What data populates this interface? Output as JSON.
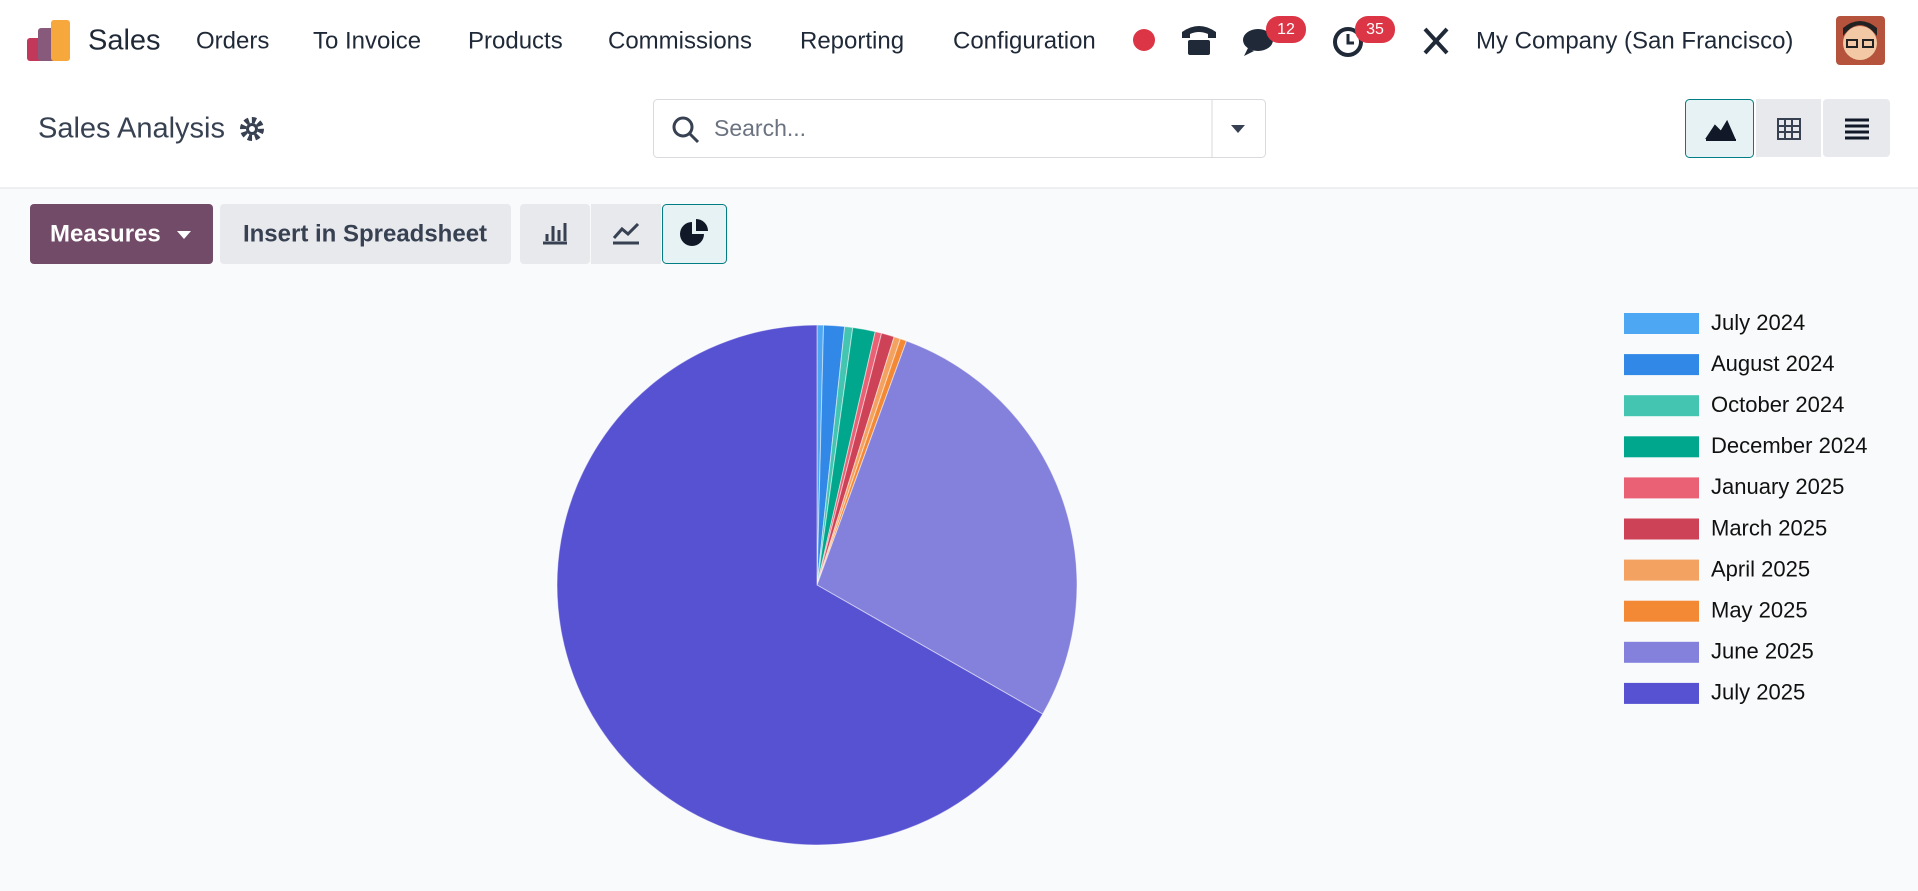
{
  "page": {
    "app": "Sales",
    "menu": [
      "Orders",
      "To Invoice",
      "Products",
      "Commissions",
      "Reporting",
      "Configuration"
    ],
    "messages_badge": "12",
    "activities_badge": "35",
    "company": "My Company (San Francisco)",
    "breadcrumb": "Sales Analysis",
    "search_placeholder": "Search...",
    "measures": "Measures",
    "insert": "Insert in Spreadsheet"
  },
  "chart_data": {
    "type": "pie",
    "categories": [
      "July 2024",
      "August 2024",
      "October 2024",
      "December 2024",
      "January 2025",
      "March 2025",
      "April 2025",
      "May 2025",
      "June 2025",
      "July 2025"
    ],
    "values": [
      0.4,
      1.3,
      0.5,
      1.4,
      0.4,
      0.8,
      0.4,
      0.4,
      27.7,
      66.8
    ],
    "colors": [
      "#4EA7F2",
      "#3188E6",
      "#43C5B1",
      "#00A78D",
      "#EA6175",
      "#CE4257",
      "#F4A261",
      "#F48935",
      "#8481DD",
      "#5752D1"
    ],
    "legend": "right"
  }
}
